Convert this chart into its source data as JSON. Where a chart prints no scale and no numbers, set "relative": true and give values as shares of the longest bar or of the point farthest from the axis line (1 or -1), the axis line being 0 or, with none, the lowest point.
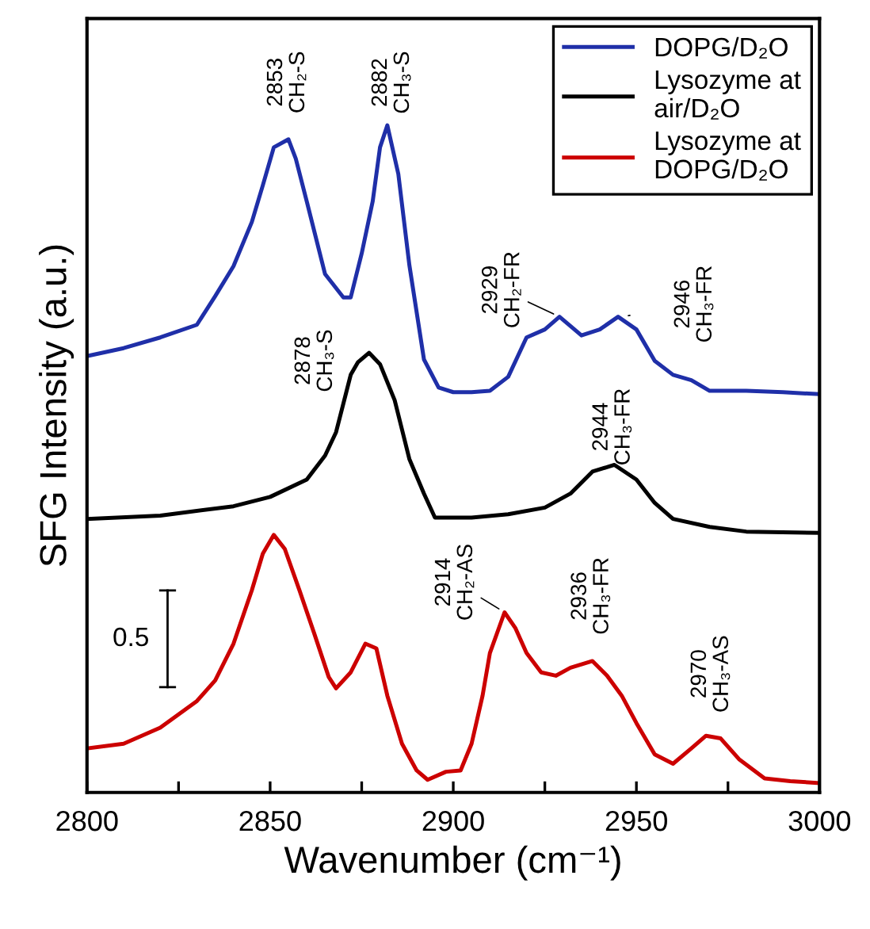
{
  "chart_data": {
    "type": "line",
    "relative": true,
    "xlabel": "Wavenumber (cm⁻¹)",
    "ylabel": "SFG Intensity (a.u.)",
    "xlim": [
      2800,
      3000
    ],
    "xticks": [
      2800,
      {
        "value": 2825,
        "label": null
      },
      2850,
      {
        "value": 2875,
        "label": null
      },
      2900,
      {
        "value": 2925,
        "label": null
      },
      2950,
      {
        "value": 2975,
        "label": null
      },
      3000
    ],
    "legend": "top right",
    "grid": false,
    "marker": "none",
    "line_style": "solid",
    "series": [
      {
        "name": "DOPG/D₂O",
        "color": "#1f2fa8",
        "x": [
          2800,
          2810,
          2820,
          2830,
          2835,
          2840,
          2845,
          2848,
          2851,
          2855,
          2857,
          2860,
          2865,
          2870,
          2872,
          2875,
          2878,
          2880,
          2882,
          2885,
          2888,
          2892,
          2896,
          2900,
          2905,
          2910,
          2915,
          2920,
          2925,
          2929,
          2935,
          2940,
          2945,
          2950,
          2955,
          2960,
          2965,
          2970,
          2980,
          2990,
          3000
        ],
        "values": [
          0.654,
          0.666,
          0.682,
          0.701,
          0.744,
          0.789,
          0.855,
          0.91,
          0.967,
          0.979,
          0.95,
          0.886,
          0.777,
          0.742,
          0.742,
          0.808,
          0.886,
          0.967,
          1.0,
          0.927,
          0.791,
          0.649,
          0.607,
          0.6,
          0.6,
          0.602,
          0.623,
          0.682,
          0.694,
          0.713,
          0.685,
          0.694,
          0.713,
          0.694,
          0.647,
          0.626,
          0.618,
          0.602,
          0.602,
          0.6,
          0.597
        ]
      },
      {
        "name": "Lysozyme at\nair/D₂O",
        "color": "#000000",
        "x": [
          2800,
          2820,
          2840,
          2850,
          2860,
          2865,
          2868,
          2872,
          2874,
          2877,
          2880,
          2884,
          2888,
          2892,
          2895,
          2900,
          2905,
          2915,
          2925,
          2932,
          2938,
          2944,
          2950,
          2955,
          2960,
          2970,
          2980,
          3000
        ],
        "values": [
          0.41,
          0.415,
          0.429,
          0.443,
          0.469,
          0.505,
          0.54,
          0.626,
          0.645,
          0.659,
          0.642,
          0.588,
          0.5,
          0.448,
          0.412,
          0.412,
          0.412,
          0.417,
          0.427,
          0.448,
          0.481,
          0.491,
          0.469,
          0.434,
          0.41,
          0.398,
          0.391,
          0.389
        ]
      },
      {
        "name": "Lysozyme at\nDOPG/D₂O",
        "color": "#cc0000",
        "x": [
          2800,
          2810,
          2820,
          2830,
          2835,
          2840,
          2845,
          2848,
          2851,
          2854,
          2858,
          2862,
          2866,
          2868,
          2872,
          2876,
          2879,
          2882,
          2886,
          2890,
          2893,
          2898,
          2902,
          2905,
          2908,
          2910,
          2914,
          2917,
          2920,
          2924,
          2928,
          2932,
          2938,
          2942,
          2946,
          2950,
          2955,
          2960,
          2965,
          2969,
          2973,
          2978,
          2985,
          2992,
          3000
        ],
        "values": [
          0.066,
          0.073,
          0.097,
          0.137,
          0.168,
          0.223,
          0.303,
          0.358,
          0.386,
          0.365,
          0.303,
          0.239,
          0.173,
          0.156,
          0.18,
          0.223,
          0.216,
          0.145,
          0.073,
          0.033,
          0.019,
          0.031,
          0.033,
          0.073,
          0.145,
          0.209,
          0.27,
          0.246,
          0.209,
          0.18,
          0.175,
          0.187,
          0.197,
          0.175,
          0.145,
          0.104,
          0.057,
          0.043,
          0.066,
          0.085,
          0.081,
          0.05,
          0.021,
          0.017,
          0.014
        ]
      }
    ],
    "annotations": [
      {
        "text": "2853\nCH₂-S",
        "x": 2853,
        "y": 0.979
      },
      {
        "text": "2882\nCH₃-S",
        "x": 2882,
        "y": 1.0
      },
      {
        "text": "2929\nCH₂-FR",
        "x": 2929,
        "y": 0.713
      },
      {
        "text": "2946\nCH₃-FR",
        "x": 2946,
        "y": 0.713
      },
      {
        "text": "2878\nCH₃-S",
        "x": 2877,
        "y": 0.659
      },
      {
        "text": "2944\nCH₃-FR",
        "x": 2944,
        "y": 0.491
      },
      {
        "text": "2914\nCH₂-AS",
        "x": 2914,
        "y": 0.27
      },
      {
        "text": "2936\nCH₃-FR",
        "x": 2936,
        "y": 0.197
      },
      {
        "text": "2970\nCH₃-AS",
        "x": 2970,
        "y": 0.085
      },
      "0.5"
    ]
  }
}
